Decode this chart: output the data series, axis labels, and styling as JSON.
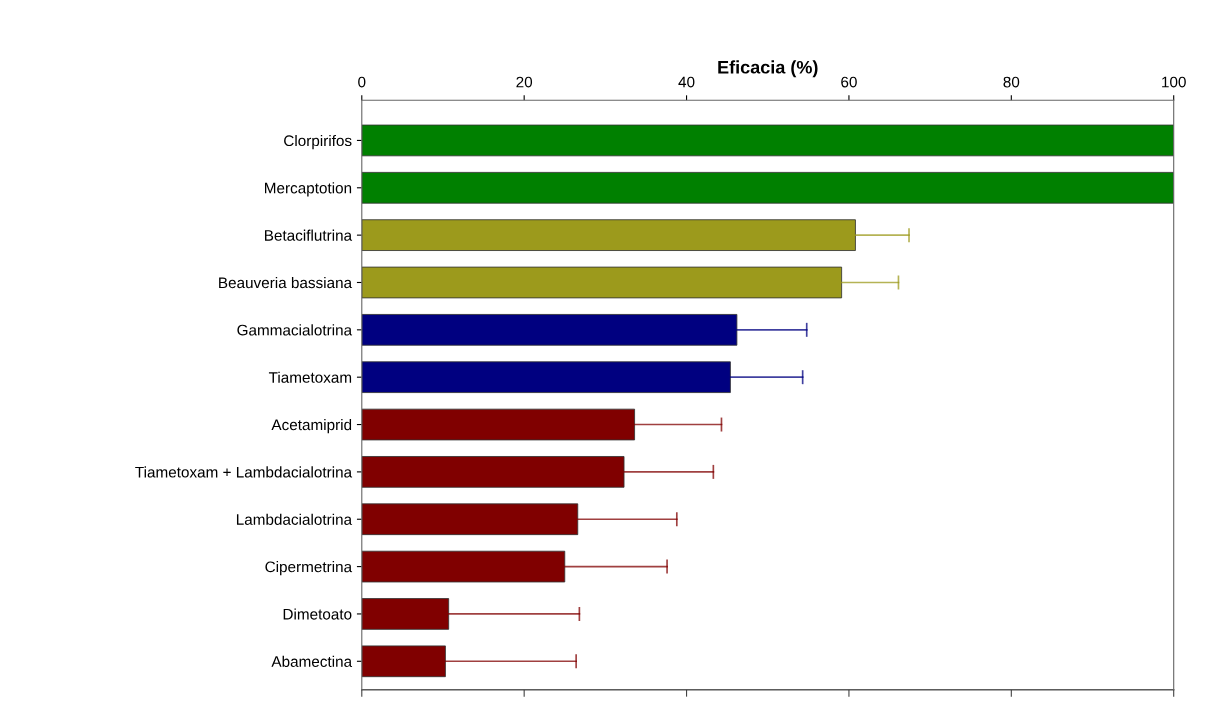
{
  "chart_data": {
    "type": "bar",
    "orientation": "horizontal",
    "xlabel": "Eficacia (%)",
    "categories": [
      "Clorpirifos",
      "Mercaptotion",
      "Betaciflutrina",
      "Beauveria bassiana",
      "Gammacialotrina",
      "Tiametoxam",
      "Acetamiprid",
      "Tiametoxam + Lambdacialotrina",
      "Lambdacialotrina",
      "Cipermetrina",
      "Dimetoato",
      "Abamectina"
    ],
    "values": [
      100,
      100,
      60.8,
      59.1,
      46.2,
      45.4,
      33.6,
      32.3,
      26.6,
      25.0,
      10.7,
      10.3
    ],
    "errors": [
      null,
      null,
      [
        60.8,
        67.4
      ],
      [
        59.1,
        66.1
      ],
      [
        46.2,
        54.8
      ],
      [
        45.4,
        54.3
      ],
      [
        33.6,
        44.3
      ],
      [
        32.3,
        43.3
      ],
      [
        26.6,
        38.8
      ],
      [
        25.0,
        37.6
      ],
      [
        10.7,
        26.8
      ],
      [
        10.3,
        26.4
      ]
    ],
    "colors": [
      "#008000",
      "#008000",
      "#9c9a1c",
      "#9c9a1c",
      "#000080",
      "#000080",
      "#800000",
      "#800000",
      "#800000",
      "#800000",
      "#800000",
      "#800000"
    ],
    "xlim": [
      0,
      100
    ],
    "xticks": [
      0,
      20,
      40,
      60,
      80,
      100
    ],
    "grid": false,
    "legend": false
  }
}
